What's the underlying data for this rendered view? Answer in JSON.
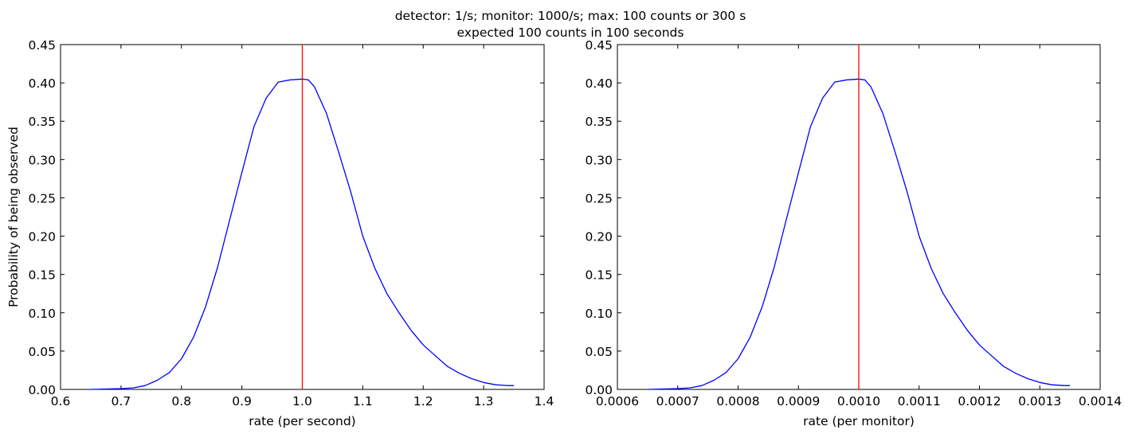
{
  "figure": {
    "suptitle_line1": "detector: 1/s;   monitor: 1000/s;  max: 100 counts or 300 s",
    "suptitle_line2": "expected 100 counts in 100 seconds"
  },
  "colors": {
    "curve": "#0000ff",
    "marker": "#ff0000",
    "axes": "#000000"
  },
  "chart_data": [
    {
      "type": "line",
      "xlabel": "rate (per second)",
      "ylabel": "Probability of being observed",
      "xlim": [
        0.6,
        1.4
      ],
      "ylim": [
        0.0,
        0.45
      ],
      "xticks": [
        "0.6",
        "0.7",
        "0.8",
        "0.9",
        "1.0",
        "1.1",
        "1.2",
        "1.3",
        "1.4"
      ],
      "yticks": [
        "0.00",
        "0.05",
        "0.10",
        "0.15",
        "0.20",
        "0.25",
        "0.30",
        "0.35",
        "0.40",
        "0.45"
      ],
      "grid": false,
      "vline": 1.0,
      "series": [
        {
          "x": [
            0.65,
            0.7,
            0.72,
            0.74,
            0.76,
            0.78,
            0.8,
            0.82,
            0.84,
            0.86,
            0.88,
            0.9,
            0.92,
            0.94,
            0.96,
            0.98,
            1.0,
            1.01,
            1.02,
            1.04,
            1.06,
            1.08,
            1.1,
            1.12,
            1.14,
            1.16,
            1.18,
            1.2,
            1.22,
            1.24,
            1.26,
            1.28,
            1.3,
            1.32,
            1.34,
            1.35
          ],
          "y": [
            0.0,
            0.001,
            0.002,
            0.005,
            0.012,
            0.022,
            0.04,
            0.068,
            0.108,
            0.16,
            0.222,
            0.283,
            0.343,
            0.38,
            0.401,
            0.404,
            0.405,
            0.404,
            0.395,
            0.36,
            0.31,
            0.258,
            0.2,
            0.158,
            0.125,
            0.1,
            0.077,
            0.058,
            0.044,
            0.03,
            0.021,
            0.014,
            0.009,
            0.006,
            0.005,
            0.005
          ]
        }
      ]
    },
    {
      "type": "line",
      "xlabel": "rate (per monitor)",
      "ylabel": "",
      "xlim": [
        0.0006,
        0.0014
      ],
      "ylim": [
        0.0,
        0.45
      ],
      "xticks": [
        "0.0006",
        "0.0007",
        "0.0008",
        "0.0009",
        "0.0010",
        "0.0011",
        "0.0012",
        "0.0013",
        "0.0014"
      ],
      "yticks": [
        "0.00",
        "0.05",
        "0.10",
        "0.15",
        "0.20",
        "0.25",
        "0.30",
        "0.35",
        "0.40",
        "0.45"
      ],
      "grid": false,
      "vline": 0.001,
      "series": [
        {
          "x": [
            0.00065,
            0.0007,
            0.00072,
            0.00074,
            0.00076,
            0.00078,
            0.0008,
            0.00082,
            0.00084,
            0.00086,
            0.00088,
            0.0009,
            0.00092,
            0.00094,
            0.00096,
            0.00098,
            0.001,
            0.00101,
            0.00102,
            0.00104,
            0.00106,
            0.00108,
            0.0011,
            0.00112,
            0.00114,
            0.00116,
            0.00118,
            0.0012,
            0.00122,
            0.00124,
            0.00126,
            0.00128,
            0.0013,
            0.00132,
            0.00134,
            0.00135
          ],
          "y": [
            0.0,
            0.001,
            0.002,
            0.005,
            0.012,
            0.022,
            0.04,
            0.068,
            0.108,
            0.16,
            0.222,
            0.283,
            0.343,
            0.38,
            0.401,
            0.404,
            0.405,
            0.404,
            0.395,
            0.36,
            0.31,
            0.258,
            0.2,
            0.158,
            0.125,
            0.1,
            0.077,
            0.058,
            0.044,
            0.03,
            0.021,
            0.014,
            0.009,
            0.006,
            0.005,
            0.005
          ]
        }
      ]
    }
  ]
}
